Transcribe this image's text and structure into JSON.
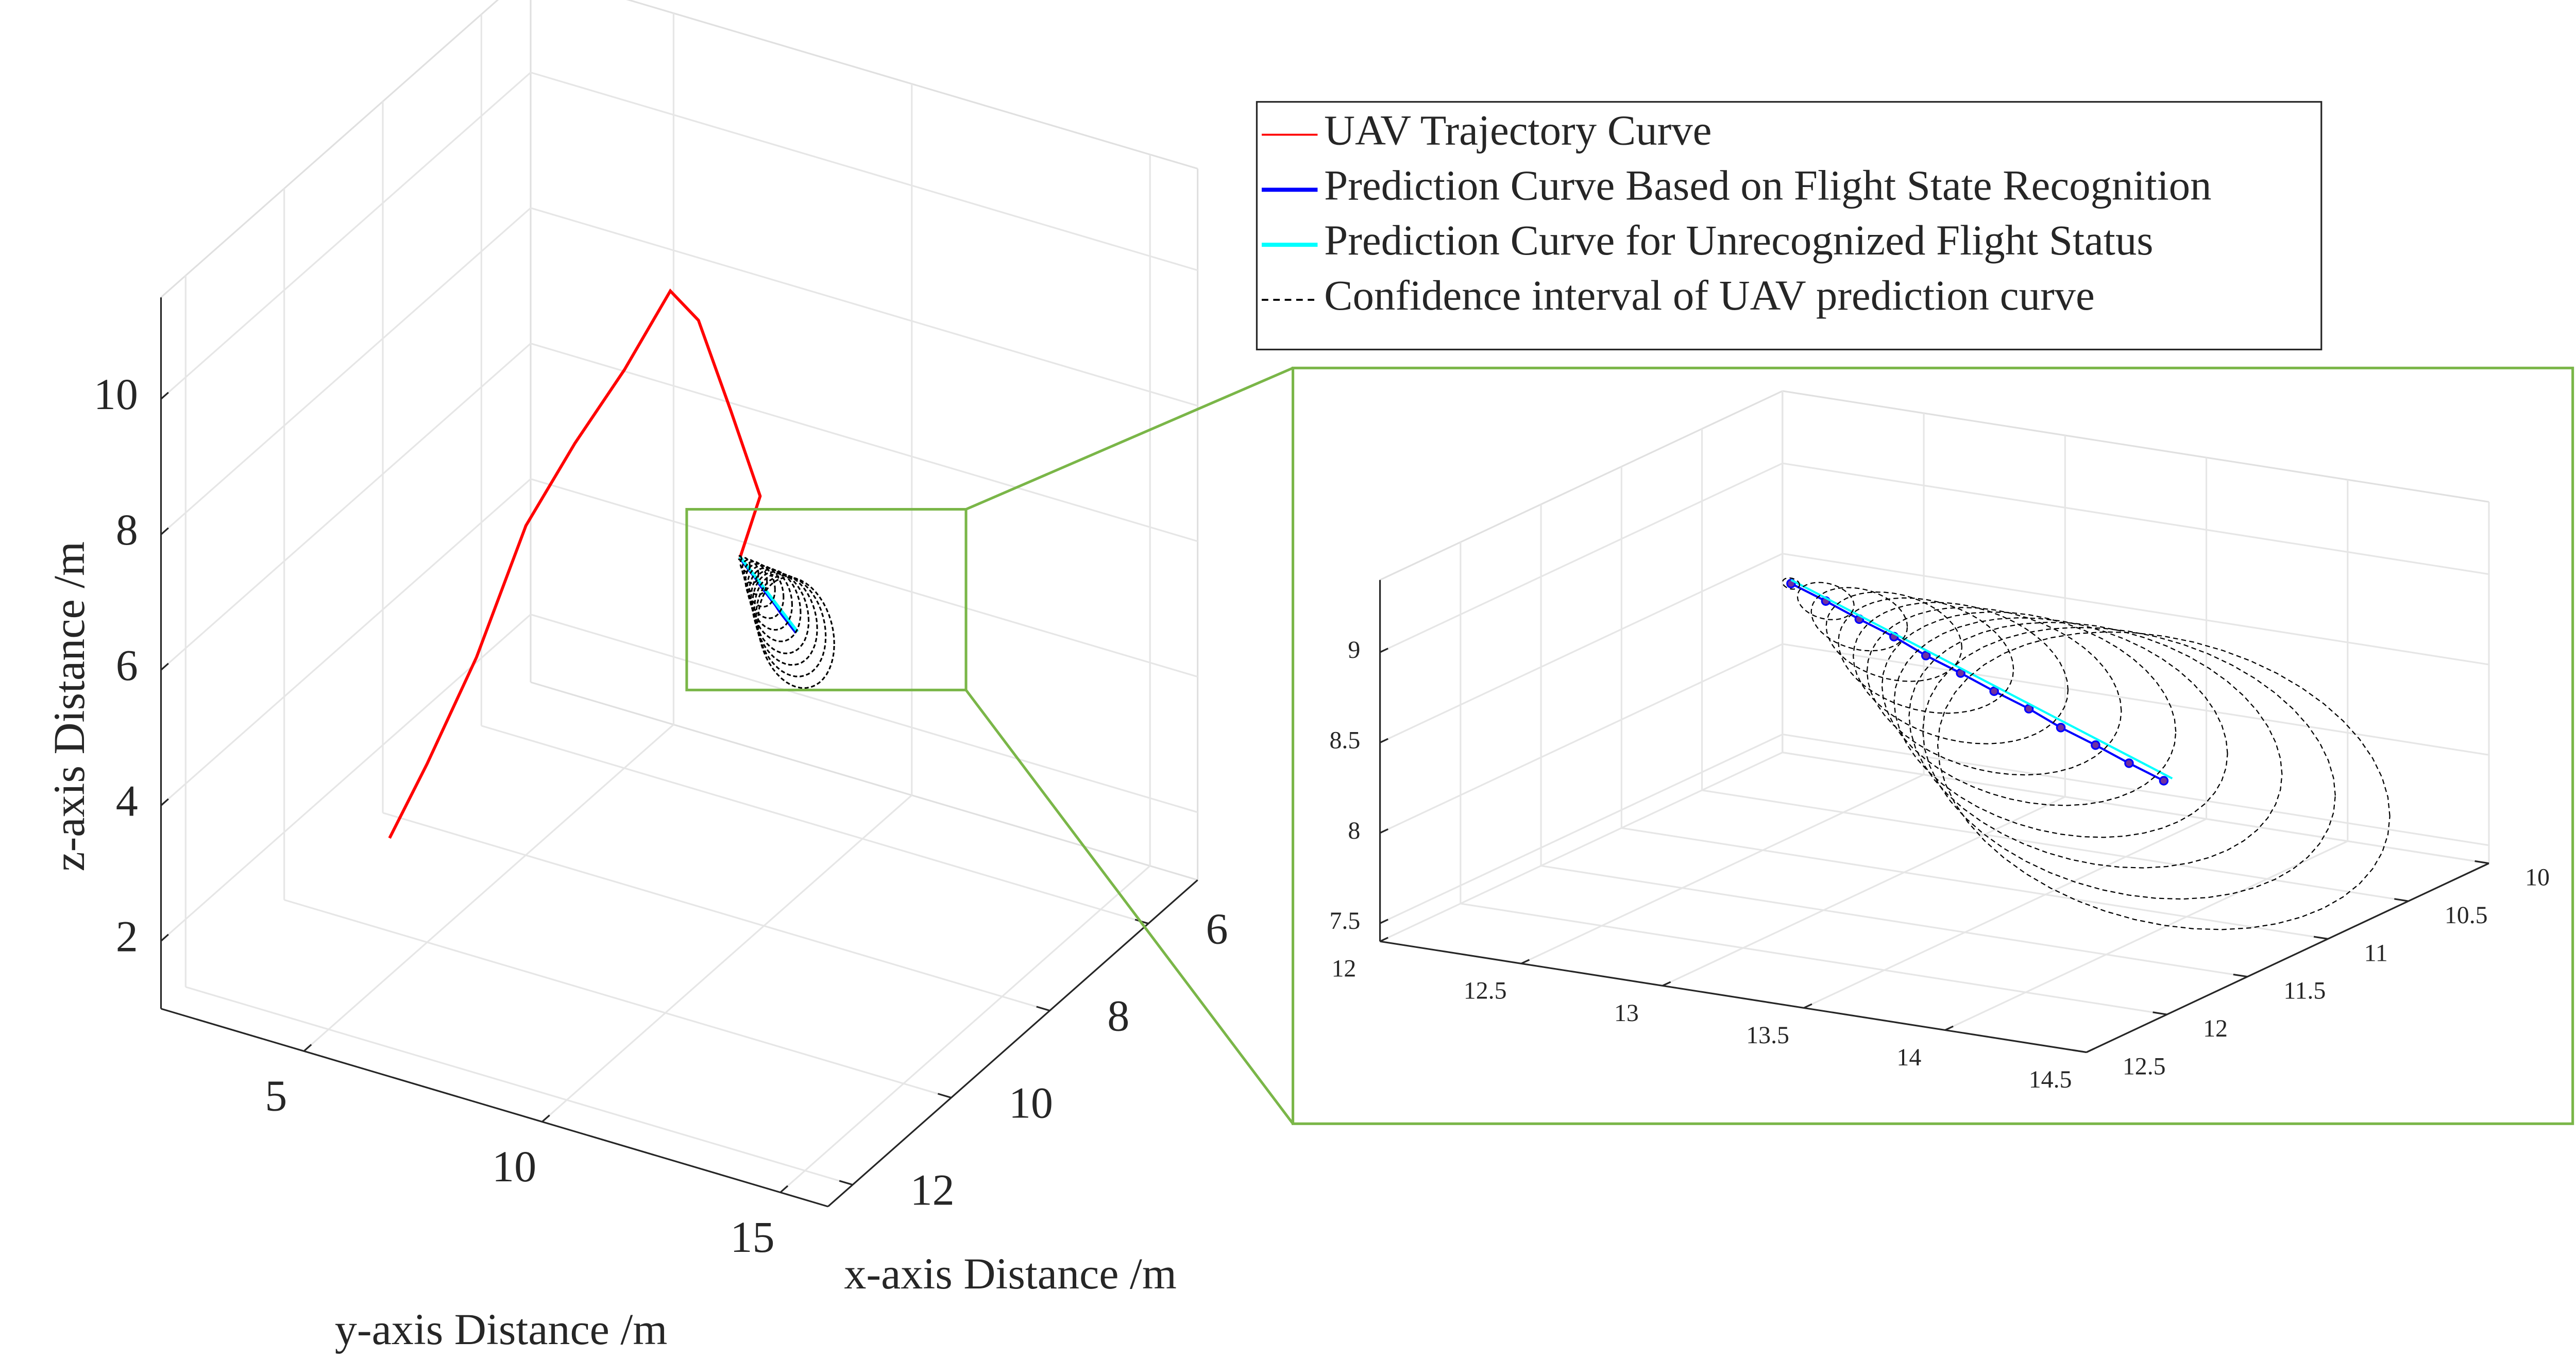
{
  "chart_data": [
    {
      "type": "line3d",
      "xlabel": "x-axis Distance /m",
      "ylabel": "y-axis Distance /m",
      "zlabel": "z-axis Distance /m",
      "xlim": [
        5,
        12.5
      ],
      "ylim": [
        2,
        16
      ],
      "zlim": [
        1,
        11.5
      ],
      "xticks": [
        6,
        8,
        10,
        12
      ],
      "yticks": [
        5,
        10,
        15
      ],
      "zticks": [
        2,
        4,
        6,
        8,
        10
      ],
      "grid": true,
      "legend": "northeast",
      "series": [
        {
          "name": "UAV Trajectory Curve",
          "color": "#ff0000",
          "x": [
            12,
            11.5,
            11,
            10.5,
            10,
            9.5,
            9,
            9,
            9.5,
            10.3,
            11
          ],
          "y": [
            6.28,
            6.55,
            7.07,
            7.59,
            8.1,
            8.62,
            9.07,
            9.66,
            10.86,
            12.3,
            12.6
          ],
          "z": [
            4.09,
            4.92,
            6.28,
            8.01,
            9.01,
            9.88,
            10.82,
            10.51,
            9.74,
            9.3,
            8.9
          ]
        },
        {
          "name": "Prediction Curve Based on Flight State Recognition",
          "color": "#0000ff",
          "marker": "o",
          "x": [
            11,
            11.03,
            11.05,
            11.08,
            11.11,
            11.14,
            11.16,
            11.19,
            11.22,
            11.25,
            11.27,
            11.3
          ],
          "y": [
            12.6,
            12.74,
            12.87,
            13.01,
            13.14,
            13.28,
            13.41,
            13.55,
            13.68,
            13.82,
            13.95,
            14.09
          ],
          "z": [
            8.9,
            8.85,
            8.79,
            8.74,
            8.68,
            8.63,
            8.57,
            8.52,
            8.46,
            8.41,
            8.35,
            8.3
          ]
        },
        {
          "name": "Prediction Curve for Unrecognized Flight Status",
          "color": "#00ffff",
          "x": [
            11,
            11.3
          ],
          "y": [
            12.6,
            14.12
          ],
          "z": [
            8.92,
            8.32
          ]
        },
        {
          "name": "Confidence interval of UAV prediction curve",
          "color": "#000000",
          "dashed": true,
          "x": [
            11,
            11.03,
            11.05,
            11.08,
            11.11,
            11.14,
            11.16,
            11.19,
            11.22,
            11.25,
            11.27,
            11.3
          ],
          "y": [
            12.6,
            12.74,
            12.87,
            13.01,
            13.14,
            13.28,
            13.41,
            13.55,
            13.68,
            13.82,
            13.95,
            14.09
          ],
          "z": [
            8.9,
            8.85,
            8.79,
            8.74,
            8.68,
            8.63,
            8.57,
            8.52,
            8.46,
            8.41,
            8.35,
            8.3
          ],
          "radius": [
            0.03,
            0.1,
            0.17,
            0.24,
            0.31,
            0.38,
            0.45,
            0.52,
            0.59,
            0.66,
            0.73,
            0.8
          ]
        }
      ]
    },
    {
      "type": "line3d",
      "xlim": [
        10,
        12.5
      ],
      "ylim": [
        12,
        14.5
      ],
      "zlim": [
        7.4,
        9.4
      ],
      "xticks": [
        10,
        10.5,
        11,
        11.5,
        12,
        12.5
      ],
      "yticks": [
        12,
        12.5,
        13,
        13.5,
        14,
        14.5
      ],
      "zticks": [
        7.5,
        8,
        8.5,
        9
      ],
      "grid": true
    }
  ]
}
